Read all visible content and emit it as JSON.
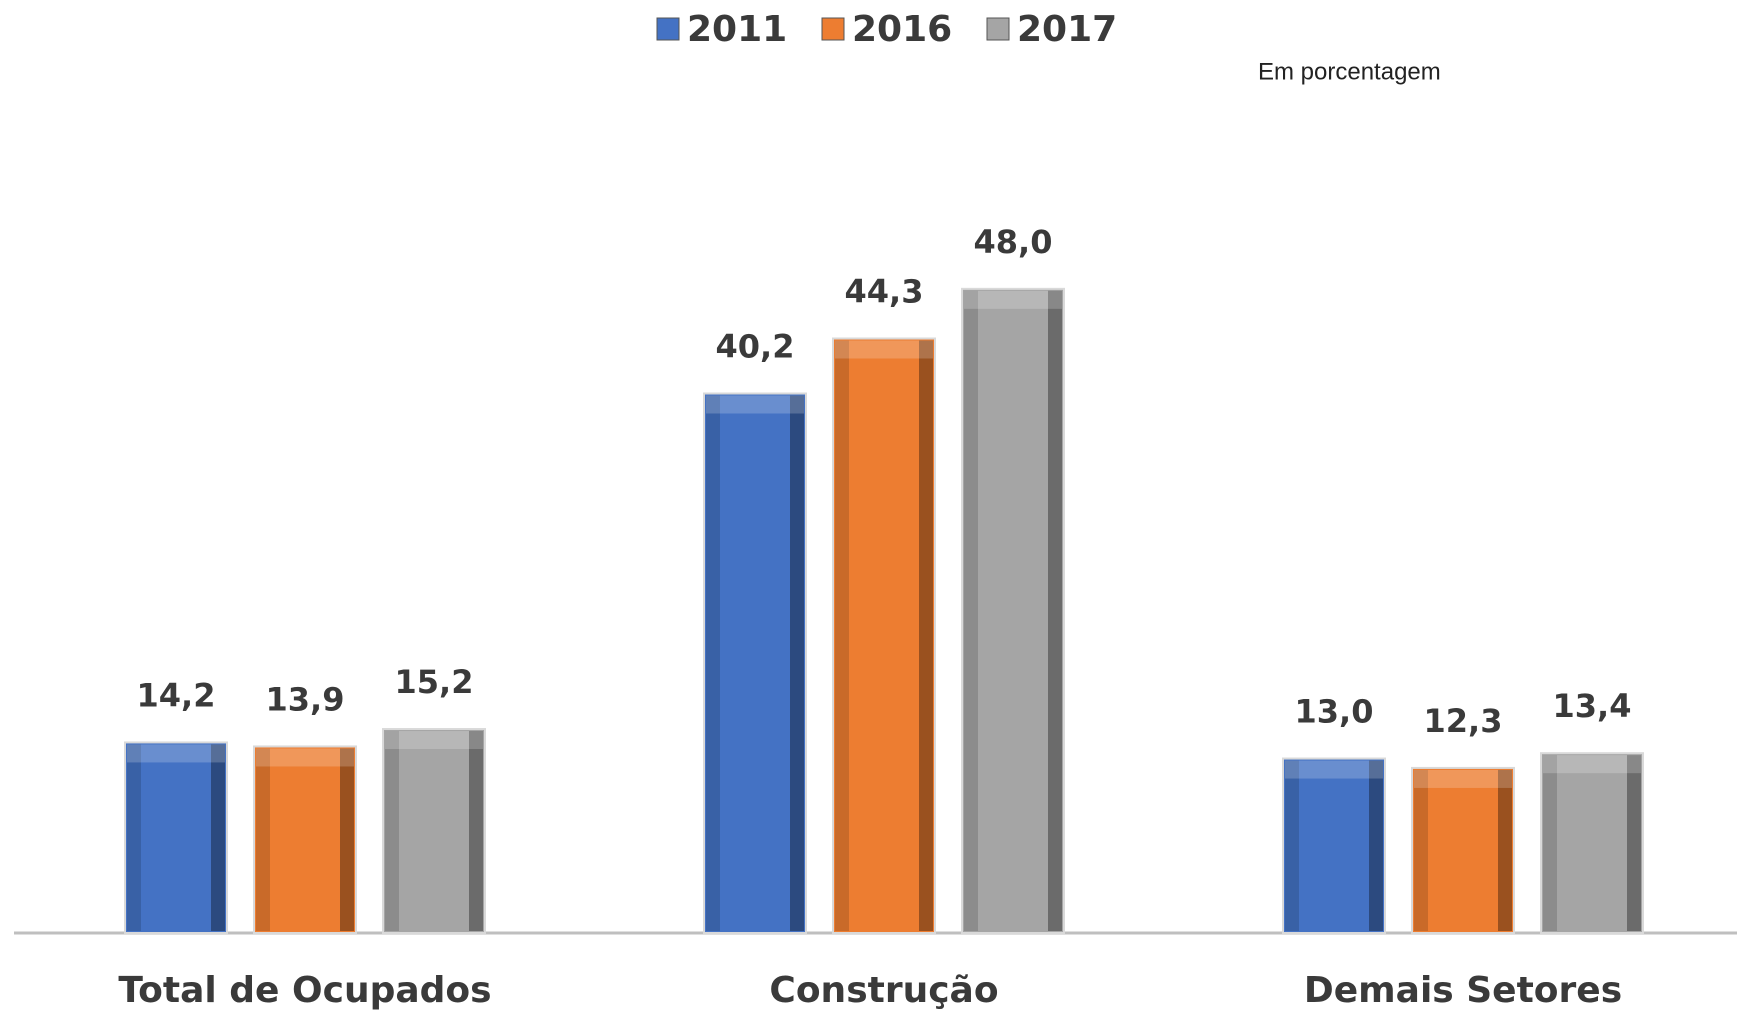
{
  "chart_data": {
    "type": "bar",
    "subtitle": "Em porcentagem",
    "categories": [
      "Total de Ocupados",
      "Construção",
      "Demais Setores"
    ],
    "series": [
      {
        "name": "2011",
        "color": "#4472c4",
        "values": [
          14.2,
          40.2,
          13.0
        ],
        "value_labels": [
          "14,2",
          "40,2",
          "13,0"
        ]
      },
      {
        "name": "2016",
        "color": "#ed7d31",
        "values": [
          13.9,
          44.3,
          12.3
        ],
        "value_labels": [
          "13,9",
          "44,3",
          "12,3"
        ]
      },
      {
        "name": "2017",
        "color": "#a5a5a5",
        "values": [
          15.2,
          48.0,
          13.4
        ],
        "value_labels": [
          "15,2",
          "48,0",
          "13,4"
        ]
      }
    ],
    "legend": "top"
  }
}
